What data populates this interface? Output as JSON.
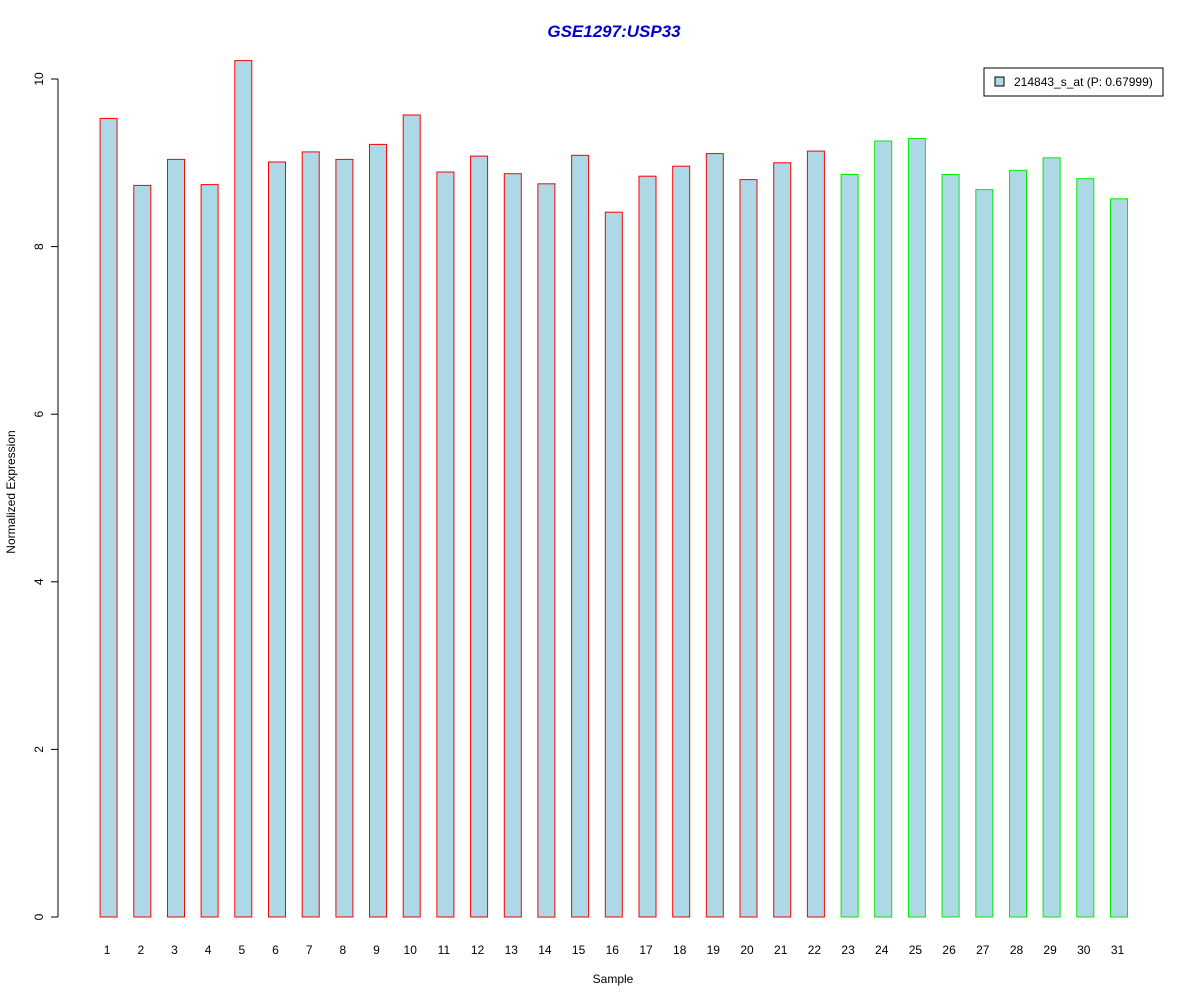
{
  "chart_data": {
    "type": "bar",
    "title": "GSE1297:USP33",
    "xlabel": "Sample",
    "ylabel": "Normalized Expression",
    "ylim": [
      0,
      10.25
    ],
    "yticks": [
      0,
      2,
      4,
      6,
      8,
      10
    ],
    "grid": false,
    "legend_position": "top-right",
    "colors": {
      "title": "#0000cc",
      "bar_fill": "#add8e6",
      "group1_border": "#ff0000",
      "group2_border": "#00ee00",
      "axis": "#000000"
    },
    "series": [
      {
        "name": "214843_s_at (P: 0.67999)",
        "fill": "#add8e6",
        "values": [
          9.53,
          8.73,
          9.04,
          8.74,
          10.22,
          9.01,
          9.13,
          9.04,
          9.22,
          9.57,
          8.89,
          9.08,
          8.87,
          8.75,
          9.09,
          8.41,
          8.84,
          8.96,
          9.11,
          8.8,
          9.0,
          9.14,
          8.86,
          9.26,
          9.29,
          8.86,
          8.68,
          8.91,
          9.06,
          8.81,
          8.57
        ]
      }
    ],
    "categories": [
      "1",
      "2",
      "3",
      "4",
      "5",
      "6",
      "7",
      "8",
      "9",
      "10",
      "11",
      "12",
      "13",
      "14",
      "15",
      "16",
      "17",
      "18",
      "19",
      "20",
      "21",
      "22",
      "23",
      "24",
      "25",
      "26",
      "27",
      "28",
      "29",
      "30",
      "31"
    ],
    "border_colors": [
      "#ff0000",
      "#ff0000",
      "#ff0000",
      "#ff0000",
      "#ff0000",
      "#ff0000",
      "#ff0000",
      "#ff0000",
      "#ff0000",
      "#ff0000",
      "#ff0000",
      "#ff0000",
      "#ff0000",
      "#ff0000",
      "#ff0000",
      "#ff0000",
      "#ff0000",
      "#ff0000",
      "#ff0000",
      "#ff0000",
      "#ff0000",
      "#ff0000",
      "#00ee00",
      "#00ee00",
      "#00ee00",
      "#00ee00",
      "#00ee00",
      "#00ee00",
      "#00ee00",
      "#00ee00",
      "#00ee00"
    ]
  }
}
